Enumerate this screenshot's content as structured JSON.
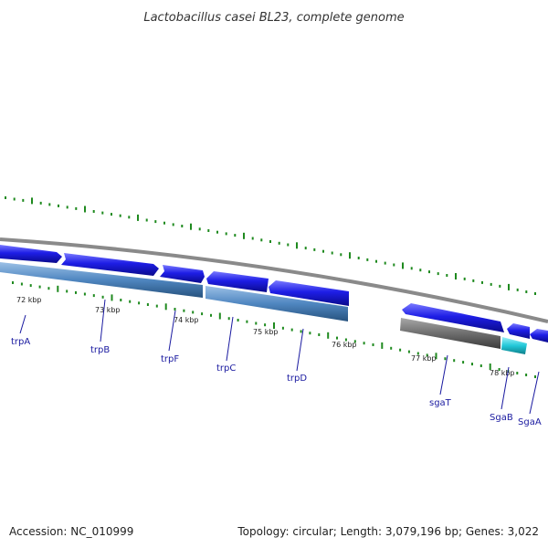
{
  "title": "Lactobacillus casei BL23, complete genome",
  "accession": "Accession: NC_010999",
  "summary": "Topology: circular; Length: 3,079,196 bp; Genes: 3,022",
  "ticks": [
    {
      "label": "72 kbp"
    },
    {
      "label": "73 kbp"
    },
    {
      "label": "74 kbp"
    },
    {
      "label": "75 kbp"
    },
    {
      "label": "76 kbp"
    },
    {
      "label": "77 kbp"
    },
    {
      "label": "78 kbp"
    }
  ],
  "genes": [
    {
      "name": "trpA"
    },
    {
      "name": "trpB"
    },
    {
      "name": "trpF"
    },
    {
      "name": "trpC"
    },
    {
      "name": "trpD"
    },
    {
      "name": "sgaT"
    },
    {
      "name": "SgaB"
    },
    {
      "name": "SgaA"
    }
  ],
  "colors": {
    "cds": "#1e1ee6",
    "cds_strand2": "#5a8fc8",
    "gray_feature": "#6e6e6e",
    "cyan_feature": "#22c8d8",
    "backbone": "#888888",
    "dots": "#1f8a1f",
    "label_lines": "#1a1aa0"
  }
}
